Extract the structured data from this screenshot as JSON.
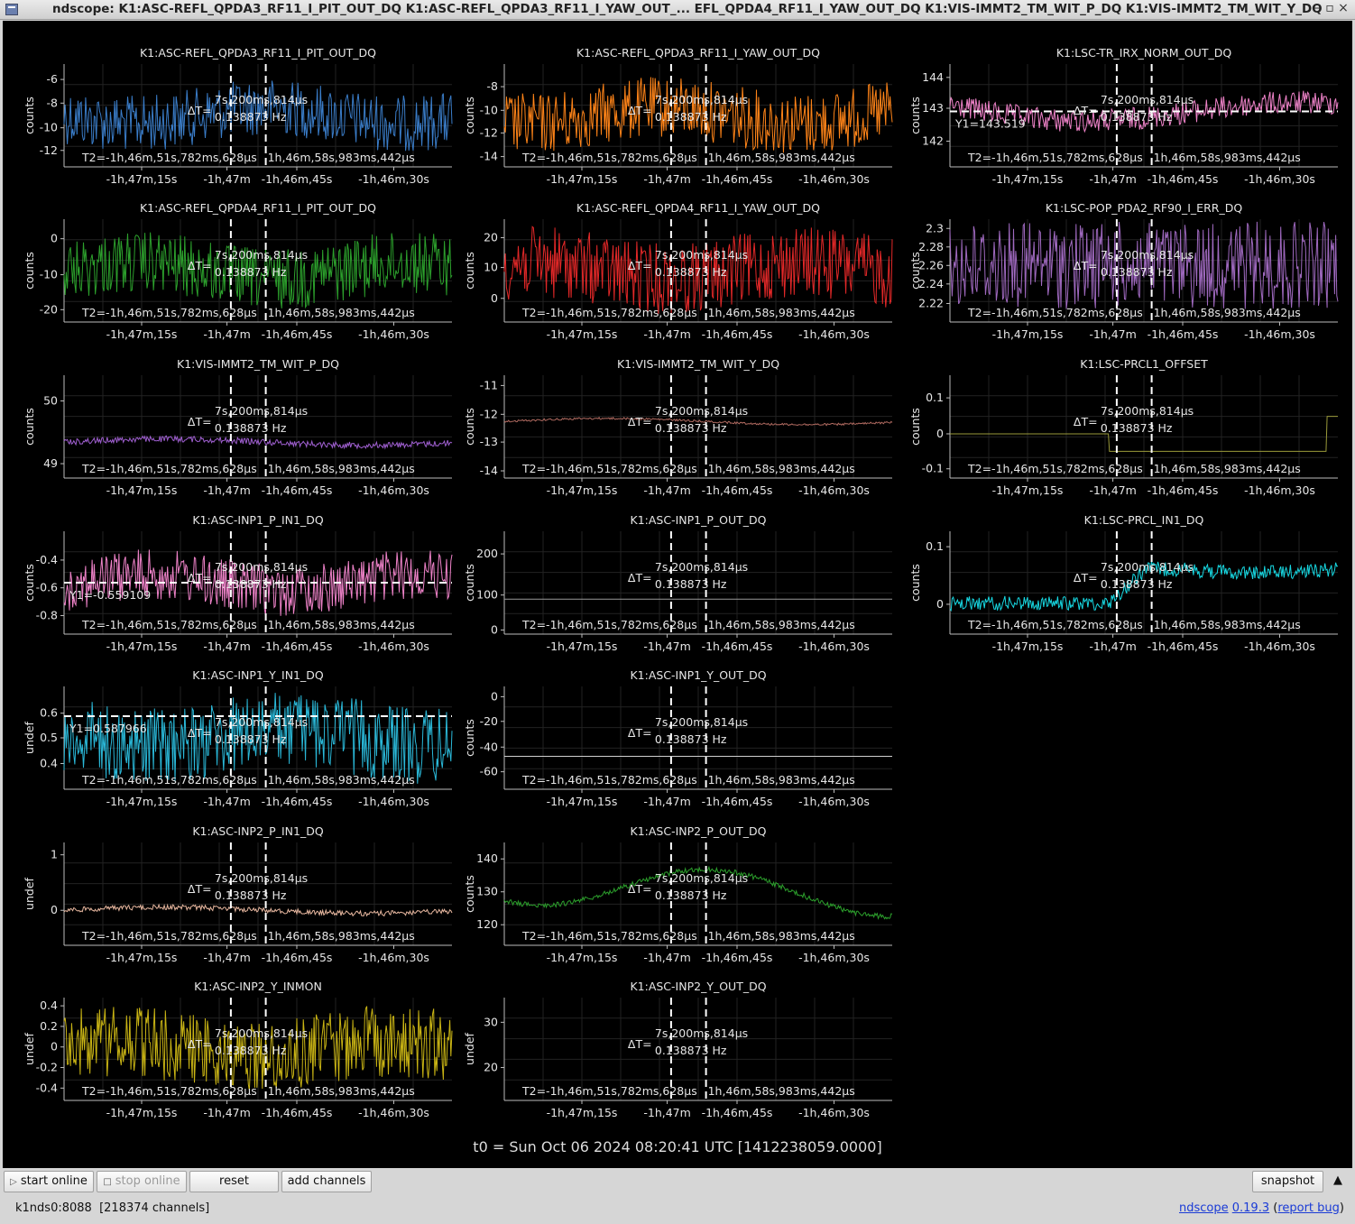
{
  "window": {
    "title": "ndscope: K1:ASC-REFL_QPDA3_RF11_I_PIT_OUT_DQ K1:ASC-REFL_QPDA3_RF11_I_YAW_OUT_... EFL_QPDA4_RF11_I_YAW_OUT_DQ K1:VIS-IMMT2_TM_WIT_P_DQ K1:VIS-IMMT2_TM_WIT_Y_DQ",
    "minimize": "–",
    "maximize": "▫",
    "close": "×"
  },
  "cursor_readouts": {
    "delta_label": "ΔT=",
    "delta_t": "7s,200ms,814µs",
    "delta_f": "0.138873 Hz",
    "t2": "T2=-1h,46m,51s,782ms,628µs",
    "t1": "1h,46m,58s,983ms,442µs"
  },
  "time_ticks": [
    "-1h,47m,15s",
    "-1h,47m",
    "-1h,46m,45s",
    "-1h,46m,30s"
  ],
  "plots": [
    {
      "title": "K1:ASC-REFL_QPDA3_RF11_I_PIT_OUT_DQ",
      "ylabel": "counts",
      "color": "#3a7dc9",
      "yticks": [
        "-6",
        "-8",
        "-10",
        "-12"
      ],
      "readout": ""
    },
    {
      "title": "K1:ASC-REFL_QPDA3_RF11_I_YAW_OUT_DQ",
      "ylabel": "counts",
      "color": "#ff8418",
      "yticks": [
        "-8",
        "-10",
        "-12",
        "-14"
      ],
      "readout": ""
    },
    {
      "title": "K1:LSC-TR_IRX_NORM_OUT_DQ",
      "ylabel": "counts",
      "color": "#ee82c8",
      "yticks": [
        "144",
        "143",
        "142"
      ],
      "readout": "Y1=143.519"
    },
    {
      "title": "K1:ASC-REFL_QPDA4_RF11_I_PIT_OUT_DQ",
      "ylabel": "counts",
      "color": "#2ca02c",
      "yticks": [
        "0",
        "-10",
        "-20"
      ],
      "readout": ""
    },
    {
      "title": "K1:ASC-REFL_QPDA4_RF11_I_YAW_OUT_DQ",
      "ylabel": "counts",
      "color": "#e32828",
      "yticks": [
        "20",
        "10",
        "0"
      ],
      "readout": ""
    },
    {
      "title": "K1:LSC-POP_PDA2_RF90_I_ERR_DQ",
      "ylabel": "counts",
      "color": "#9f69bf",
      "yticks": [
        "2.3",
        "2.28",
        "2.26",
        "2.24",
        "2.22"
      ],
      "readout": ""
    },
    {
      "title": "K1:VIS-IMMT2_TM_WIT_P_DQ",
      "ylabel": "counts",
      "color": "#9f5fd0",
      "yticks": [
        "50",
        "49"
      ],
      "readout": ""
    },
    {
      "title": "K1:VIS-IMMT2_TM_WIT_Y_DQ",
      "ylabel": "counts",
      "color": "#b06a60",
      "yticks": [
        "-11",
        "-12",
        "-13",
        "-14"
      ],
      "readout": ""
    },
    {
      "title": "K1:LSC-PRCL1_OFFSET",
      "ylabel": "counts",
      "color": "#9a9a3a",
      "yticks": [
        "0.1",
        "0",
        "-0.1"
      ],
      "readout": ""
    },
    {
      "title": "K1:ASC-INP1_P_IN1_DQ",
      "ylabel": "counts",
      "color": "#ee82c8",
      "yticks": [
        "-0.4",
        "-0.6",
        "-0.8"
      ],
      "readout": "Y1=-0.559109"
    },
    {
      "title": "K1:ASC-INP1_P_OUT_DQ",
      "ylabel": "counts",
      "color": "#9a9a9a",
      "yticks": [
        "200",
        "100",
        "0"
      ],
      "readout": ""
    },
    {
      "title": "K1:LSC-PRCL_IN1_DQ",
      "ylabel": "counts",
      "color": "#17d8e2",
      "yticks": [
        "0.1",
        "0"
      ],
      "readout": ""
    },
    {
      "title": "K1:ASC-INP1_Y_IN1_DQ",
      "ylabel": "undef",
      "color": "#2ab8d8",
      "yticks": [
        "0.6",
        "0.5",
        "0.4"
      ],
      "readout": "Y1=0.587966"
    },
    {
      "title": "K1:ASC-INP1_Y_OUT_DQ",
      "ylabel": "counts",
      "color": "#cfcfcf",
      "yticks": [
        "0",
        "-20",
        "-40",
        "-60"
      ],
      "readout": ""
    },
    {
      "title": "K1:ASC-INP2_P_IN1_DQ",
      "ylabel": "undef",
      "color": "#e8b8a0",
      "yticks": [
        "1",
        "0"
      ],
      "readout": ""
    },
    {
      "title": "K1:ASC-INP2_P_OUT_DQ",
      "ylabel": "counts",
      "color": "#2ca02c",
      "yticks": [
        "140",
        "130",
        "120"
      ],
      "readout": ""
    },
    {
      "title": "K1:ASC-INP2_Y_INMON",
      "ylabel": "undef",
      "color": "#c9b414",
      "yticks": [
        "0.4",
        "0.2",
        "0",
        "-0.2",
        "-0.4"
      ],
      "readout": ""
    },
    {
      "title": "K1:ASC-INP2_Y_OUT_DQ",
      "ylabel": "undef",
      "color": "#cfcfcf",
      "yticks": [
        "30",
        "20"
      ],
      "readout": ""
    }
  ],
  "t0_text": "t0 = Sun Oct 06 2024 08:20:41 UTC [1412238059.0000]",
  "toolbar": {
    "start_online": "start online",
    "stop_online": "stop online",
    "reset": "reset",
    "add_channels": "add channels",
    "snapshot": "snapshot",
    "collapse": "▲"
  },
  "status": {
    "server": "k1nds0:8088",
    "channels": "[218374 channels]",
    "app_name": "ndscope",
    "version": "0.19.3",
    "report_bug": "report bug"
  }
}
